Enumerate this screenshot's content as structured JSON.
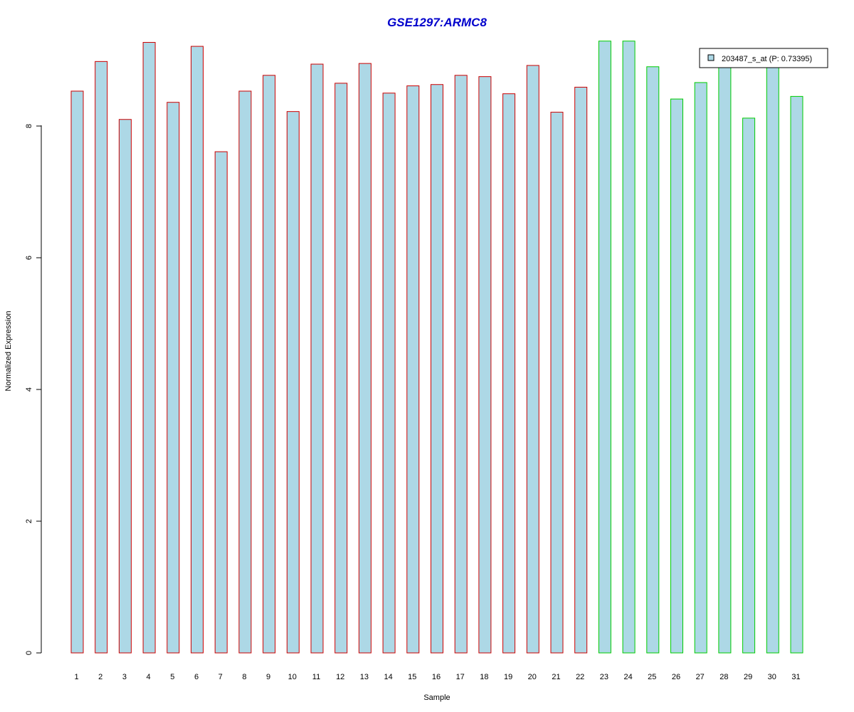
{
  "chart_data": {
    "type": "bar",
    "title": "GSE1297:ARMC8",
    "title_color": "#0000CC",
    "xlabel": "Sample",
    "ylabel": "Normalized Expression",
    "ylim": [
      0,
      9.5
    ],
    "yticks": [
      0,
      2,
      4,
      6,
      8
    ],
    "categories": [
      "1",
      "2",
      "3",
      "4",
      "5",
      "6",
      "7",
      "8",
      "9",
      "10",
      "11",
      "12",
      "13",
      "14",
      "15",
      "16",
      "17",
      "18",
      "19",
      "20",
      "21",
      "22",
      "23",
      "24",
      "25",
      "26",
      "27",
      "28",
      "29",
      "30",
      "31"
    ],
    "series": [
      {
        "name": "203487_s_at (P: 0.73395)",
        "values": [
          8.53,
          8.98,
          8.1,
          9.27,
          8.36,
          9.21,
          7.61,
          8.53,
          8.77,
          8.22,
          8.94,
          8.65,
          8.95,
          8.5,
          8.61,
          8.63,
          8.77,
          8.75,
          8.49,
          8.92,
          8.21,
          8.59,
          9.29,
          9.29,
          8.9,
          8.41,
          8.66,
          8.95,
          8.12,
          8.98,
          8.45
        ]
      }
    ],
    "group_border_colors": [
      "#CC0000",
      "#CC0000",
      "#CC0000",
      "#CC0000",
      "#CC0000",
      "#CC0000",
      "#CC0000",
      "#CC0000",
      "#CC0000",
      "#CC0000",
      "#CC0000",
      "#CC0000",
      "#CC0000",
      "#CC0000",
      "#CC0000",
      "#CC0000",
      "#CC0000",
      "#CC0000",
      "#CC0000",
      "#CC0000",
      "#CC0000",
      "#CC0000",
      "#00CC00",
      "#00CC00",
      "#00CC00",
      "#00CC00",
      "#00CC00",
      "#00CC00",
      "#00CC00",
      "#00CC00",
      "#00CC00"
    ],
    "bar_fill": "#ADD8E6",
    "grid": false,
    "legend_position": "top-right"
  }
}
